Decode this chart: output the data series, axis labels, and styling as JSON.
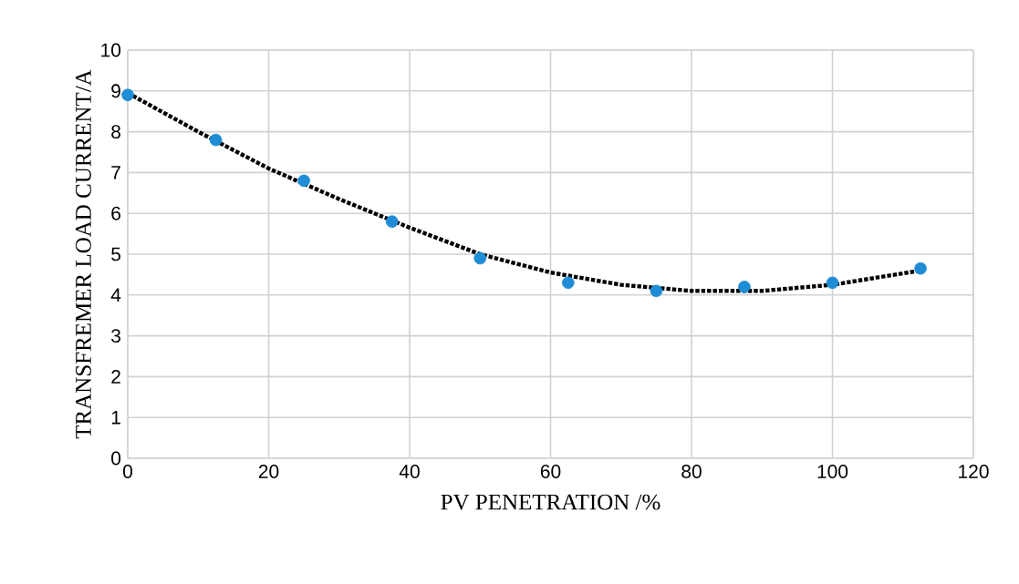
{
  "chart_data": {
    "type": "scatter",
    "xlabel": "PV PENETRATION /%",
    "ylabel": "TRANSFREMER LOAD CURRENT/A",
    "xlim": [
      0,
      120
    ],
    "ylim": [
      0,
      10
    ],
    "xticks": [
      0,
      20,
      40,
      60,
      80,
      100,
      120
    ],
    "yticks": [
      0,
      1,
      2,
      3,
      4,
      5,
      6,
      7,
      8,
      9,
      10
    ],
    "grid": true,
    "series": [
      {
        "color": "#1f8dd6",
        "marker": "circle",
        "x": [
          0,
          12.5,
          25,
          37.5,
          50,
          62.5,
          75,
          87.5,
          100,
          112.5
        ],
        "values": [
          8.9,
          7.8,
          6.8,
          5.8,
          4.9,
          4.3,
          4.1,
          4.2,
          4.3,
          4.65
        ]
      },
      {
        "type": "line",
        "color": "#000000",
        "marker": "none",
        "line_style": "dotted",
        "x": [
          0,
          10,
          20,
          30,
          40,
          50,
          60,
          70,
          80,
          90,
          100,
          112.5
        ],
        "values": [
          8.95,
          8.0,
          7.1,
          6.35,
          5.65,
          5.0,
          4.55,
          4.25,
          4.1,
          4.1,
          4.25,
          4.6
        ]
      }
    ]
  }
}
